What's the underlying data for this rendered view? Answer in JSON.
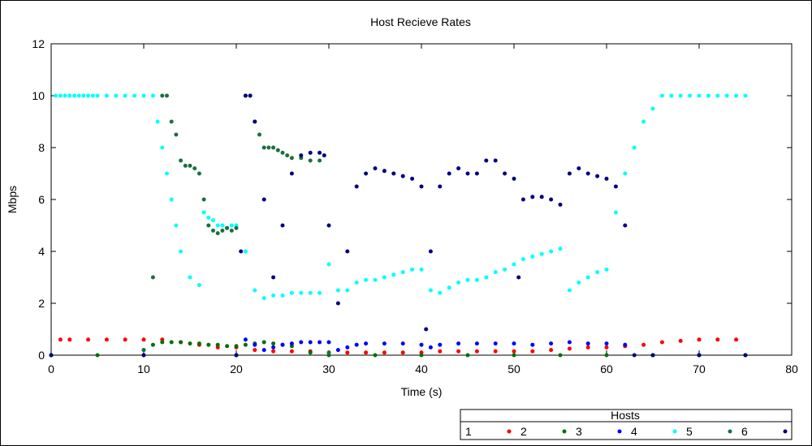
{
  "chart_data": {
    "type": "scatter",
    "title": "Host Recieve Rates",
    "xlabel": "Time (s)",
    "ylabel": "Mbps",
    "xlim": [
      0,
      80
    ],
    "ylim": [
      0,
      12
    ],
    "x_ticks": [
      0,
      10,
      20,
      30,
      40,
      50,
      60,
      70,
      80
    ],
    "y_ticks": [
      0,
      2,
      4,
      6,
      8,
      10,
      12
    ],
    "x_tick_labels": [
      "0",
      "10",
      "20",
      "30",
      "40",
      "50",
      "60",
      "70",
      "80"
    ],
    "y_tick_labels": [
      "0",
      "2",
      "4",
      "6",
      "8",
      "10",
      "12"
    ],
    "grid": false,
    "legend": {
      "title": "Hosts",
      "placement": "bottom-right"
    },
    "series": [
      {
        "name": "1",
        "color": "#ff0000",
        "x": [
          1,
          2,
          4,
          6,
          8,
          10,
          12,
          14,
          16,
          18,
          20,
          22,
          24,
          26,
          28,
          30,
          32,
          34,
          36,
          38,
          40,
          42,
          44,
          46,
          48,
          50,
          52,
          54,
          56,
          58,
          60,
          62,
          64,
          66,
          68,
          70,
          72,
          74
        ],
        "y": [
          0.6,
          0.6,
          0.6,
          0.6,
          0.6,
          0.6,
          0.6,
          0.5,
          0.4,
          0.3,
          0.3,
          0.2,
          0.15,
          0.15,
          0.15,
          0.1,
          0.1,
          0.1,
          0.1,
          0.1,
          0.1,
          0.15,
          0.15,
          0.15,
          0.15,
          0.15,
          0.15,
          0.2,
          0.25,
          0.3,
          0.3,
          0.35,
          0.4,
          0.5,
          0.55,
          0.6,
          0.6,
          0.6
        ]
      },
      {
        "name": "2",
        "color": "#007000",
        "x": [
          0,
          5,
          10,
          11,
          12,
          13,
          14,
          15,
          16,
          17,
          18,
          19,
          20,
          21,
          22,
          23,
          24,
          25,
          26,
          28,
          30,
          35,
          40,
          45,
          50,
          55,
          60,
          65,
          70,
          75
        ],
        "y": [
          0,
          0,
          0.2,
          0.4,
          0.5,
          0.5,
          0.5,
          0.45,
          0.45,
          0.4,
          0.4,
          0.35,
          0.35,
          0.4,
          0.45,
          0.5,
          0.45,
          0.4,
          0.35,
          0.1,
          0,
          0,
          0,
          0,
          0,
          0,
          0,
          0,
          0,
          0
        ]
      },
      {
        "name": "3",
        "color": "#0000ff",
        "x": [
          0,
          10,
          20,
          21,
          22,
          23,
          24,
          25,
          26,
          27,
          28,
          29,
          30,
          31,
          32,
          33,
          34,
          36,
          38,
          40,
          41,
          42,
          44,
          46,
          48,
          50,
          52,
          54,
          56,
          58,
          60,
          62,
          65,
          70,
          75
        ],
        "y": [
          0,
          0,
          0,
          0.6,
          0.4,
          0.2,
          0.3,
          0.4,
          0.45,
          0.5,
          0.5,
          0.5,
          0.5,
          0.2,
          0.3,
          0.4,
          0.45,
          0.45,
          0.45,
          0.4,
          0.3,
          0.4,
          0.45,
          0.45,
          0.45,
          0.45,
          0.4,
          0.45,
          0.5,
          0.45,
          0.45,
          0.4,
          0,
          0,
          0
        ]
      },
      {
        "name": "4",
        "color": "#00ffff",
        "x": [
          0.5,
          1,
          1.5,
          2,
          2.5,
          3,
          3.5,
          4,
          4.5,
          5,
          6,
          7,
          8,
          9,
          10,
          11,
          11.5,
          12,
          12.5,
          13,
          13.5,
          14,
          15,
          16,
          16.5,
          17,
          17.5,
          18,
          18.5,
          19,
          19.5,
          20,
          21,
          22,
          23,
          24,
          25,
          26,
          27,
          28,
          29,
          30,
          31,
          32,
          33,
          34,
          35,
          36,
          37,
          38,
          39,
          40,
          41,
          42,
          43,
          44,
          45,
          46,
          47,
          48,
          49,
          50,
          51,
          52,
          53,
          54,
          55,
          56,
          57,
          58,
          59,
          60,
          61,
          62,
          63,
          64,
          65,
          66,
          67,
          68,
          69,
          70,
          71,
          72,
          73,
          74,
          75
        ],
        "y": [
          10,
          10,
          10,
          10,
          10,
          10,
          10,
          10,
          10,
          10,
          10,
          10,
          10,
          10,
          10,
          10,
          9,
          8,
          7,
          6,
          5,
          4,
          3,
          2.7,
          5.5,
          5.3,
          5.2,
          5,
          5,
          4.9,
          5,
          5,
          4,
          2.5,
          2.2,
          2.3,
          2.3,
          2.4,
          2.4,
          2.4,
          2.4,
          3.5,
          2.5,
          2.5,
          2.8,
          2.9,
          2.9,
          3,
          3.1,
          3.2,
          3.3,
          3.3,
          2.5,
          2.4,
          2.6,
          2.8,
          2.9,
          2.9,
          3,
          3.2,
          3.3,
          3.5,
          3.7,
          3.8,
          3.9,
          4,
          4.1,
          2.5,
          2.8,
          3,
          3.2,
          3.3,
          5.5,
          7,
          8,
          9,
          9.5,
          10,
          10,
          10,
          10,
          10,
          10,
          10,
          10,
          10,
          10
        ]
      },
      {
        "name": "5",
        "color": "#1a7040",
        "x": [
          10,
          11,
          12,
          12.5,
          13,
          13.5,
          14,
          14.5,
          15,
          15.5,
          16,
          16.5,
          17,
          17.5,
          18,
          18.5,
          19,
          19.5,
          20,
          21,
          21.5,
          22,
          22.5,
          23,
          23.5,
          24,
          24.5,
          25,
          25.5,
          26,
          27,
          28,
          29,
          30
        ],
        "y": [
          0.2,
          3,
          10,
          10,
          9,
          8.5,
          7.5,
          7.3,
          7.3,
          7.2,
          7,
          6,
          5,
          4.8,
          4.7,
          4.8,
          4.9,
          4.8,
          4.9,
          10,
          10,
          9,
          8.5,
          8,
          8,
          8,
          7.9,
          7.8,
          7.7,
          7.6,
          7.6,
          7.5,
          7.5,
          0.1
        ]
      },
      {
        "name": "6",
        "color": "#000080",
        "x": [
          0,
          10,
          20,
          20.5,
          21,
          21.5,
          22,
          23,
          24,
          25,
          26,
          27,
          28,
          29,
          29.5,
          30,
          31,
          32,
          33,
          34,
          35,
          36,
          37,
          38,
          39,
          40,
          40.5,
          41,
          42,
          43,
          44,
          45,
          46,
          47,
          48,
          49,
          50,
          50.5,
          51,
          52,
          53,
          54,
          55,
          56,
          57,
          58,
          59,
          60,
          61,
          62,
          63,
          65,
          70,
          75
        ],
        "y": [
          0,
          0,
          0,
          4,
          10,
          10,
          9,
          6,
          3,
          5,
          7,
          7.7,
          7.8,
          7.8,
          7.7,
          5,
          2,
          4,
          6.5,
          7,
          7.2,
          7.1,
          7,
          6.9,
          6.8,
          6.5,
          1,
          4,
          6.5,
          7,
          7.2,
          7,
          7,
          7.5,
          7.5,
          7,
          6.8,
          3,
          6,
          6.1,
          6.1,
          6,
          5.8,
          7,
          7.2,
          7,
          6.9,
          6.8,
          6.5,
          5,
          0,
          0,
          0,
          0
        ]
      }
    ]
  }
}
